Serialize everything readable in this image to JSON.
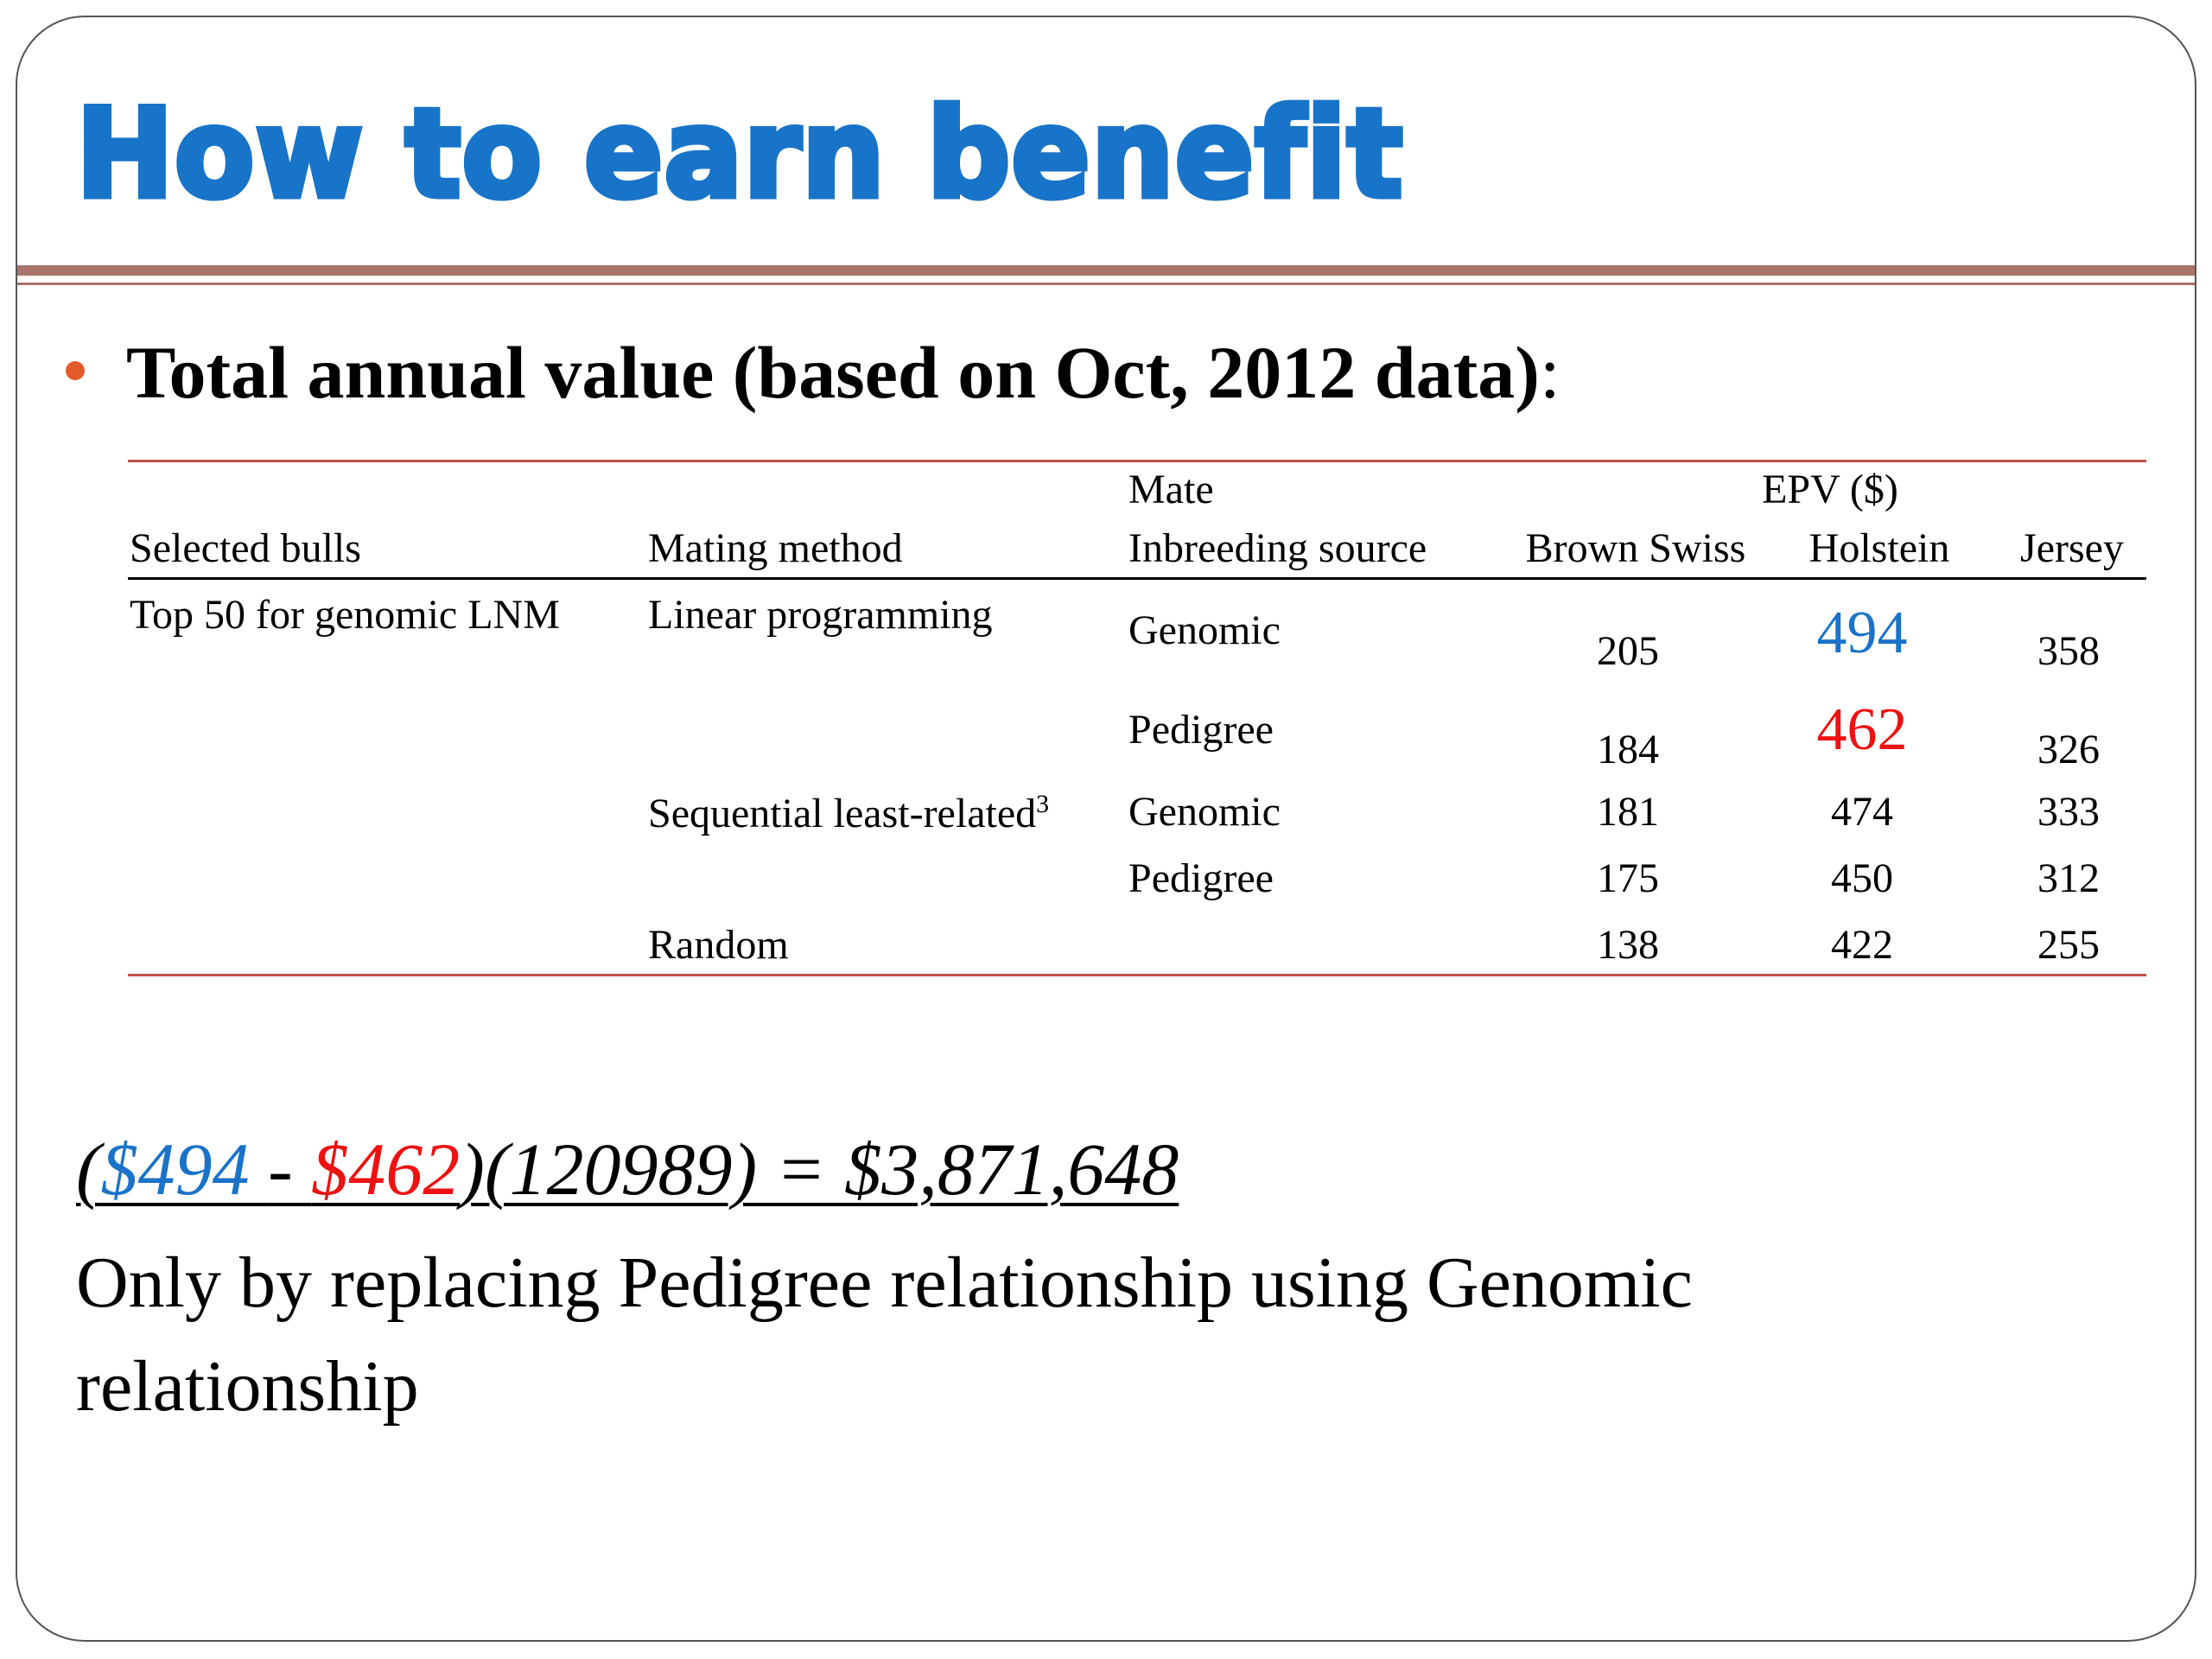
{
  "slide": {
    "title": "How to earn benefit",
    "heading": "Total annual value (based on Oct, 2012 data)",
    "heading_colon": ":"
  },
  "table": {
    "headers": {
      "selected_bulls": "Selected bulls",
      "mating_method": "Mating method",
      "mate": "Mate",
      "inbreeding_source": "Inbreeding source",
      "epv": "EPV ($)",
      "brown_swiss": "Brown Swiss",
      "holstein": "Holstein",
      "jersey": "Jersey"
    },
    "selected_bulls": "Top 50 for genomic LNM",
    "methods": {
      "linear": "Linear programming",
      "sequential": "Sequential least-related",
      "sequential_footnote": "3",
      "random": "Random"
    },
    "rows": [
      {
        "source": "Genomic",
        "brown_swiss": "205",
        "holstein": "494",
        "jersey": "358"
      },
      {
        "source": "Pedigree",
        "brown_swiss": "184",
        "holstein": "462",
        "jersey": "326"
      },
      {
        "source": "Genomic",
        "brown_swiss": "181",
        "holstein": "474",
        "jersey": "333"
      },
      {
        "source": "Pedigree",
        "brown_swiss": "175",
        "holstein": "450",
        "jersey": "312"
      },
      {
        "source": "",
        "brown_swiss": "138",
        "holstein": "422",
        "jersey": "255"
      }
    ]
  },
  "formula": {
    "open": "(",
    "a": "$494 ",
    "minus": "- ",
    "b": "$462",
    "rest": ")(120989) = $3,871,648"
  },
  "note": "Only by replacing Pedigree relationship using Genomic relationship",
  "colors": {
    "title": "#1874c8",
    "rule": "#a87368",
    "bullet": "#e35b2a",
    "highlight_blue": "#1a73c8",
    "highlight_red": "#ee1111"
  }
}
